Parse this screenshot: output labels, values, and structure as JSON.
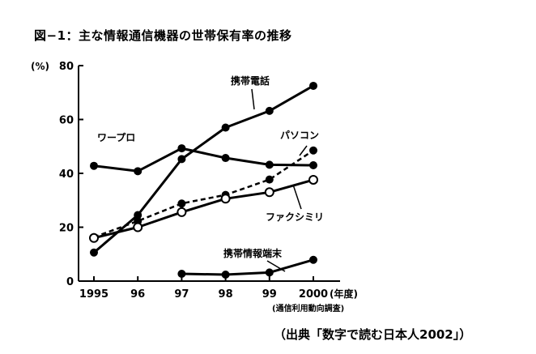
{
  "figure": {
    "title": "図−1：主な情報通信機器の世帯保有率の推移",
    "source": "（出典「数字で読む日本人2002」）"
  },
  "chart_data": {
    "type": "line",
    "title": "図−1：主な情報通信機器の世帯保有率の推移",
    "ylabel": "(%)",
    "xlabel": "(年度)",
    "x_note": "(通信利用動向調査)",
    "x_tick_labels": [
      "1995",
      "96",
      "97",
      "98",
      "99",
      "2000"
    ],
    "x": [
      1995,
      1996,
      1997,
      1998,
      1999,
      2000
    ],
    "ylim": [
      0,
      80
    ],
    "yticks": [
      0,
      20,
      40,
      60,
      80
    ],
    "grid": false,
    "series": [
      {
        "name": "携帯電話",
        "values": [
          10.6,
          24.5,
          45.3,
          57.0,
          63.2,
          72.5
        ],
        "marker": "filled",
        "line": "solid"
      },
      {
        "name": "ワープロ",
        "values": [
          42.8,
          40.8,
          49.3,
          45.7,
          43.2,
          43.0
        ],
        "marker": "filled",
        "line": "solid"
      },
      {
        "name": "パソコン",
        "values": [
          16.3,
          22.3,
          28.8,
          32.0,
          37.7,
          48.5
        ],
        "marker": "filled",
        "line": "dashed"
      },
      {
        "name": "ファクシミリ",
        "values": [
          16.0,
          20.0,
          25.6,
          30.6,
          33.0,
          37.6
        ],
        "marker": "open",
        "line": "solid"
      },
      {
        "name": "携帯情報端末",
        "values": [
          null,
          null,
          2.7,
          2.4,
          3.2,
          7.9
        ],
        "marker": "filled",
        "line": "solid"
      }
    ]
  }
}
